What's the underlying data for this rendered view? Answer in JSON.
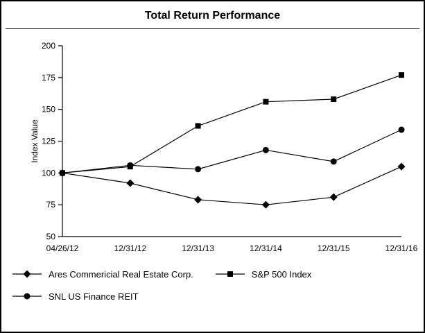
{
  "chart_data": {
    "type": "line",
    "title": "Total Return Performance",
    "xlabel": "",
    "ylabel": "Index Value",
    "ylim": [
      50,
      200
    ],
    "yticks": [
      50,
      75,
      100,
      125,
      150,
      175,
      200
    ],
    "categories": [
      "04/26/12",
      "12/31/12",
      "12/31/13",
      "12/31/14",
      "12/31/15",
      "12/31/16"
    ],
    "series": [
      {
        "name": "Ares Commericial Real Estate Corp.",
        "marker": "diamond",
        "values": [
          100,
          92,
          79,
          75,
          81,
          105
        ]
      },
      {
        "name": "S&P 500 Index",
        "marker": "square",
        "values": [
          100,
          105,
          137,
          156,
          158,
          177
        ]
      },
      {
        "name": "SNL US Finance REIT",
        "marker": "circle",
        "values": [
          100,
          106,
          103,
          118,
          109,
          134
        ]
      }
    ],
    "line_color": "#000000",
    "background": "#ffffff",
    "grid": false,
    "legend_position": "bottom"
  }
}
